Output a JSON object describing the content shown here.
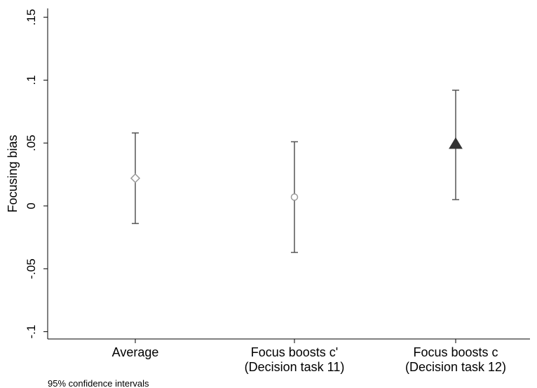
{
  "chart_data": {
    "type": "scatter",
    "ylabel": "Focusing bias",
    "xlabel": "",
    "ylim": [
      -0.1,
      0.15
    ],
    "yticks": [
      -0.1,
      -0.05,
      0,
      0.05,
      0.1,
      0.15
    ],
    "ytick_labels": [
      "-.1",
      "-.05",
      "0",
      ".05",
      ".1",
      ".15"
    ],
    "categories": [
      [
        "Average"
      ],
      [
        "Focus boosts c'",
        "(Decision task 11)"
      ],
      [
        "Focus boosts c",
        "(Decision task 12)"
      ]
    ],
    "points": [
      {
        "value": 0.022,
        "ci_low": -0.014,
        "ci_high": 0.058,
        "marker": "hollow-diamond",
        "color": "#999999"
      },
      {
        "value": 0.007,
        "ci_low": -0.037,
        "ci_high": 0.051,
        "marker": "hollow-circle",
        "color": "#999999"
      },
      {
        "value": 0.049,
        "ci_low": 0.005,
        "ci_high": 0.092,
        "marker": "filled-triangle",
        "color": "#333333"
      }
    ],
    "note": "95% confidence intervals",
    "grid": false
  }
}
